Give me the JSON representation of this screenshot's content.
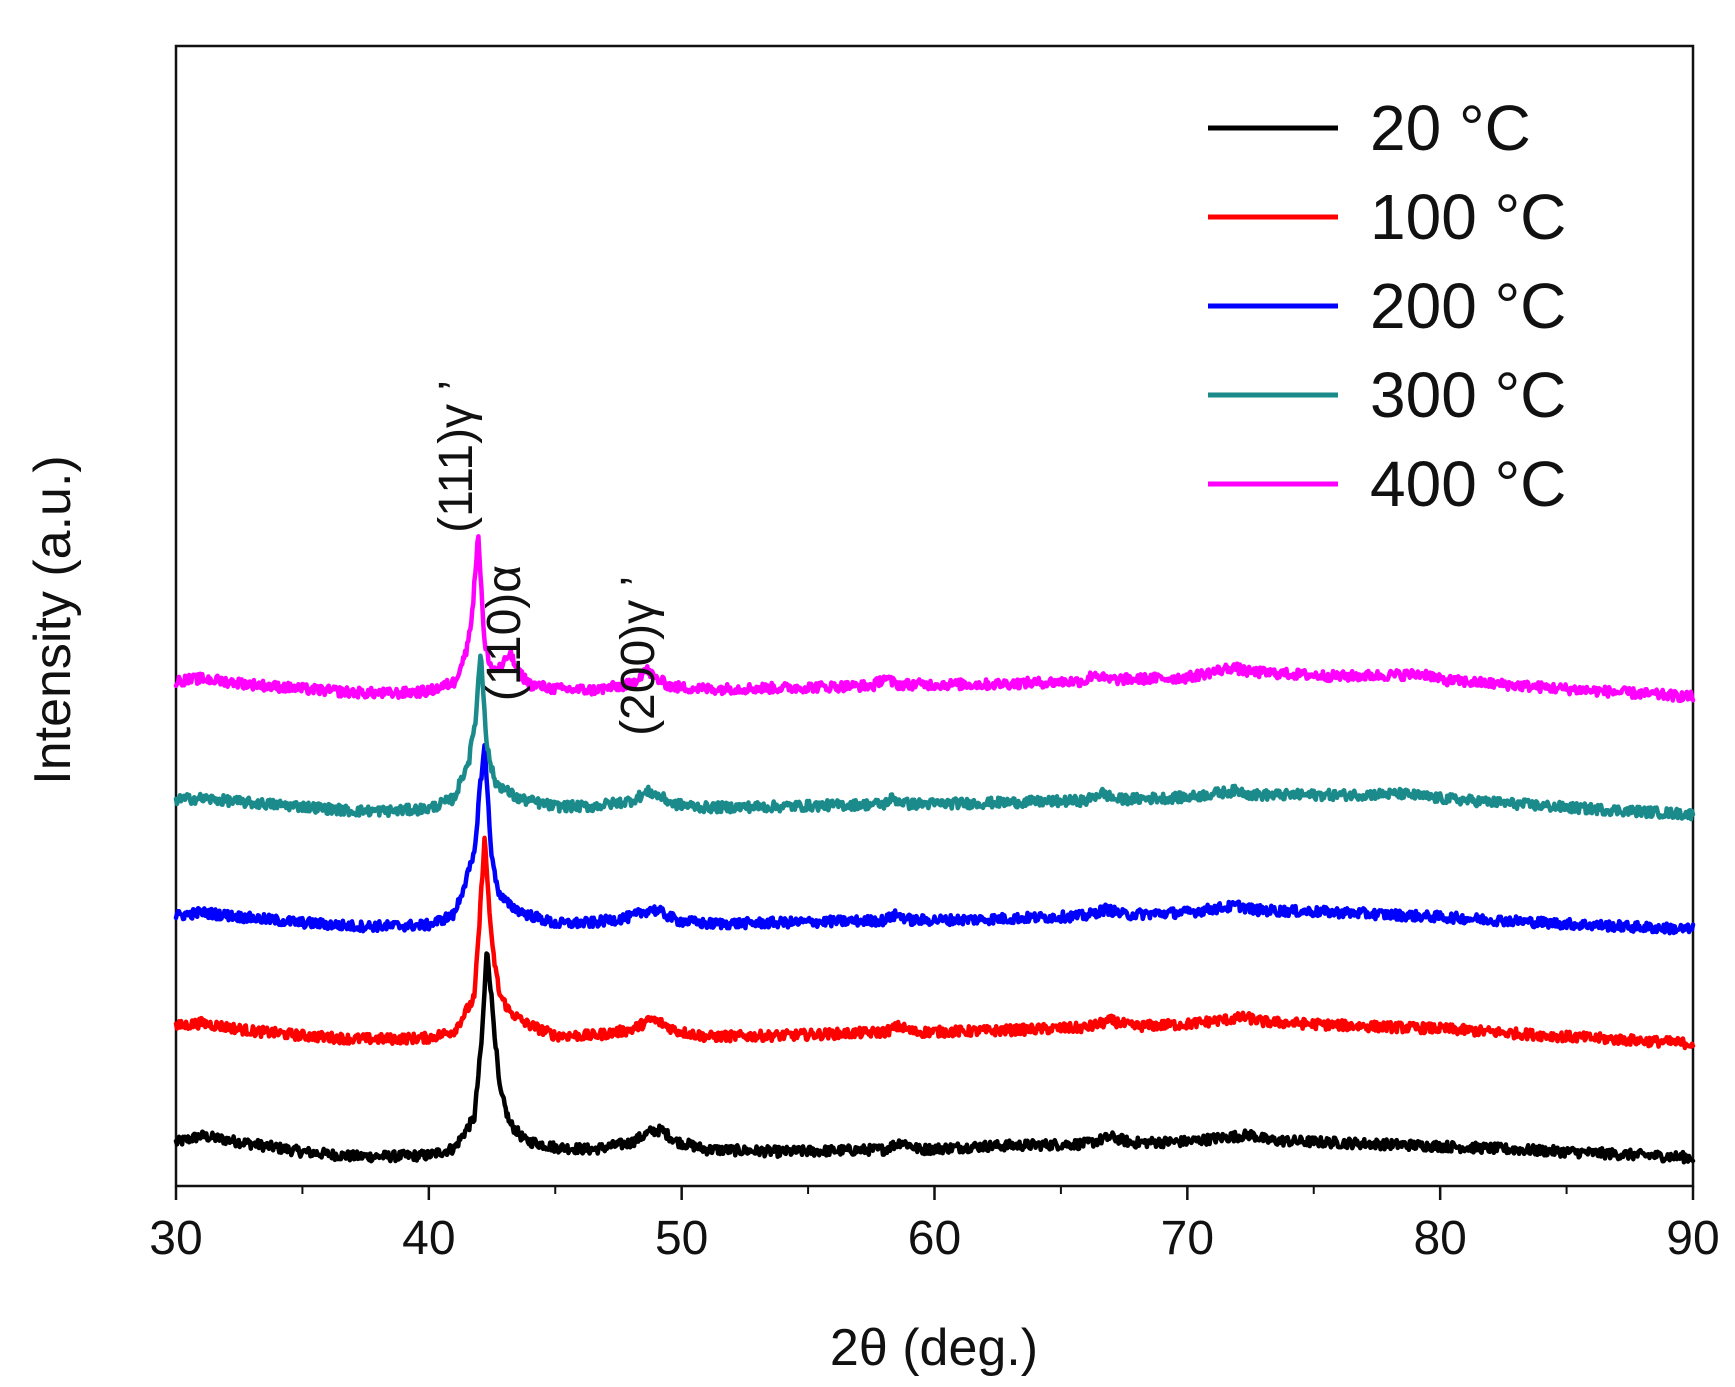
{
  "chart_data": {
    "type": "line",
    "title": "",
    "xlabel": "2θ (deg.)",
    "ylabel": "Intensity (a.u.)",
    "xlim": [
      30,
      90
    ],
    "ylim": [
      0,
      100
    ],
    "x_ticks": [
      {
        "value": 30,
        "label": "30"
      },
      {
        "value": 40,
        "label": "40"
      },
      {
        "value": 50,
        "label": "50"
      },
      {
        "value": 60,
        "label": "60"
      },
      {
        "value": 70,
        "label": "70"
      },
      {
        "value": 80,
        "label": "80"
      },
      {
        "value": 90,
        "label": "90"
      }
    ],
    "x_minor_ticks": [
      35,
      45,
      55,
      65,
      75,
      85
    ],
    "legend": {
      "position": "top-right"
    },
    "series": [
      {
        "name": "20 °C",
        "color": "#000000",
        "offset": 2.5,
        "x": [
          30,
          31,
          33,
          35,
          37,
          38.5,
          40,
          41,
          41.8,
          42.1,
          42.3,
          42.5,
          42.8,
          43.2,
          43.8,
          45,
          46.5,
          48,
          48.8,
          49.2,
          49.8,
          51,
          54,
          58,
          58.7,
          59.4,
          62,
          66,
          67,
          67.8,
          70,
          72.5,
          73.2,
          76,
          80,
          85,
          90
        ],
        "values": [
          3.8,
          4.4,
          3.7,
          3.0,
          2.6,
          2.6,
          2.7,
          3.3,
          6.0,
          13.0,
          21.0,
          16.0,
          8.5,
          5.5,
          4.0,
          3.4,
          3.2,
          3.8,
          4.8,
          4.9,
          3.9,
          3.2,
          3.0,
          3.2,
          3.9,
          3.2,
          3.5,
          3.7,
          4.3,
          3.8,
          3.9,
          4.5,
          4.0,
          3.8,
          3.5,
          3.0,
          2.5
        ]
      },
      {
        "name": "100 °C",
        "color": "#ff0000",
        "offset": 12.5,
        "x": [
          30,
          31,
          33,
          35,
          37,
          38.5,
          40,
          41,
          41.8,
          42.0,
          42.2,
          42.5,
          42.8,
          43.2,
          43.8,
          45,
          46.5,
          48,
          48.8,
          49.2,
          49.8,
          51,
          54,
          58,
          58.6,
          59.2,
          62,
          66,
          67,
          67.8,
          70,
          72.3,
          73,
          76,
          80,
          85,
          90
        ],
        "values": [
          14.0,
          14.3,
          13.6,
          13.2,
          12.9,
          12.9,
          13.0,
          13.6,
          16.5,
          23.0,
          30.5,
          21.0,
          16.8,
          15.3,
          14.3,
          13.2,
          13.2,
          13.7,
          14.6,
          14.3,
          13.6,
          13.1,
          13.2,
          13.5,
          14.0,
          13.5,
          13.6,
          13.9,
          14.5,
          14.0,
          14.2,
          14.8,
          14.4,
          14.1,
          13.8,
          13.1,
          12.5
        ]
      },
      {
        "name": "200 °C",
        "color": "#0000ff",
        "offset": 22.5,
        "x": [
          30,
          31,
          33,
          35,
          37,
          38.5,
          40,
          41,
          41.8,
          42.0,
          42.2,
          42.5,
          42.8,
          43.2,
          43.8,
          45,
          46.5,
          48,
          48.8,
          49.2,
          49.8,
          51,
          54,
          58,
          58.5,
          59.1,
          62,
          66,
          66.8,
          67.5,
          70,
          72,
          72.7,
          76,
          80,
          85,
          90
        ],
        "values": [
          23.7,
          24.0,
          23.5,
          23.1,
          22.8,
          22.8,
          22.9,
          23.8,
          29.0,
          34.5,
          38.5,
          28.5,
          25.5,
          24.6,
          23.9,
          23.0,
          23.1,
          23.6,
          24.3,
          24.0,
          23.3,
          23.0,
          23.1,
          23.3,
          23.8,
          23.3,
          23.4,
          23.7,
          24.3,
          23.8,
          24.0,
          24.6,
          24.2,
          24.0,
          23.6,
          23.0,
          22.5
        ]
      },
      {
        "name": "300 °C",
        "color": "#1a8a8a",
        "offset": 32.5,
        "x": [
          30,
          31,
          33,
          35,
          37,
          38.5,
          40,
          41,
          41.6,
          41.85,
          42.05,
          42.3,
          42.6,
          43.0,
          43.5,
          45,
          46.5,
          48,
          48.7,
          49.1,
          49.7,
          51,
          54,
          58,
          58.3,
          59,
          62,
          66,
          66.6,
          67.2,
          70,
          72,
          72.6,
          76,
          78.5,
          80,
          85,
          90
        ],
        "values": [
          33.9,
          34.0,
          33.6,
          33.3,
          32.9,
          32.9,
          33.1,
          34.0,
          37.5,
          41.0,
          47.0,
          38.5,
          35.5,
          34.8,
          34.0,
          33.3,
          33.3,
          33.8,
          34.6,
          34.2,
          33.5,
          33.2,
          33.3,
          33.5,
          34.0,
          33.5,
          33.6,
          33.8,
          34.5,
          33.9,
          34.1,
          34.7,
          34.3,
          34.3,
          34.4,
          34.0,
          33.2,
          32.6
        ]
      },
      {
        "name": "400 °C",
        "color": "#ff00ff",
        "offset": 42.5,
        "x": [
          30,
          31,
          33,
          35,
          37,
          38.5,
          40,
          41,
          41.5,
          41.75,
          41.95,
          42.2,
          42.5,
          42.9,
          43.2,
          43.5,
          44,
          45,
          46.5,
          48,
          48.6,
          49,
          49.6,
          51,
          54,
          57.6,
          58.0,
          58.5,
          62,
          66,
          66.3,
          66.8,
          70,
          71.8,
          72.4,
          76,
          79.5,
          80,
          85,
          90
        ],
        "values": [
          44.3,
          44.5,
          44.0,
          43.6,
          43.3,
          43.2,
          43.4,
          44.2,
          47.0,
          51.0,
          57.5,
          47.5,
          45.3,
          45.5,
          46.8,
          45.2,
          44.0,
          43.6,
          43.5,
          44.0,
          45.3,
          44.5,
          43.8,
          43.6,
          43.7,
          43.9,
          44.6,
          44.0,
          44.0,
          44.3,
          45.0,
          44.4,
          44.6,
          45.5,
          45.1,
          44.7,
          44.9,
          44.4,
          43.6,
          42.9
        ]
      }
    ],
    "annotations": [
      {
        "text": "(111)γ ’",
        "x": 41.7,
        "y": 64.0,
        "rotation": -90
      },
      {
        "text": "(110)α",
        "x": 43.6,
        "y": 48.5,
        "rotation": -90
      },
      {
        "text": "(200)γ ’",
        "x": 48.9,
        "y": 46.5,
        "rotation": -90
      }
    ]
  }
}
